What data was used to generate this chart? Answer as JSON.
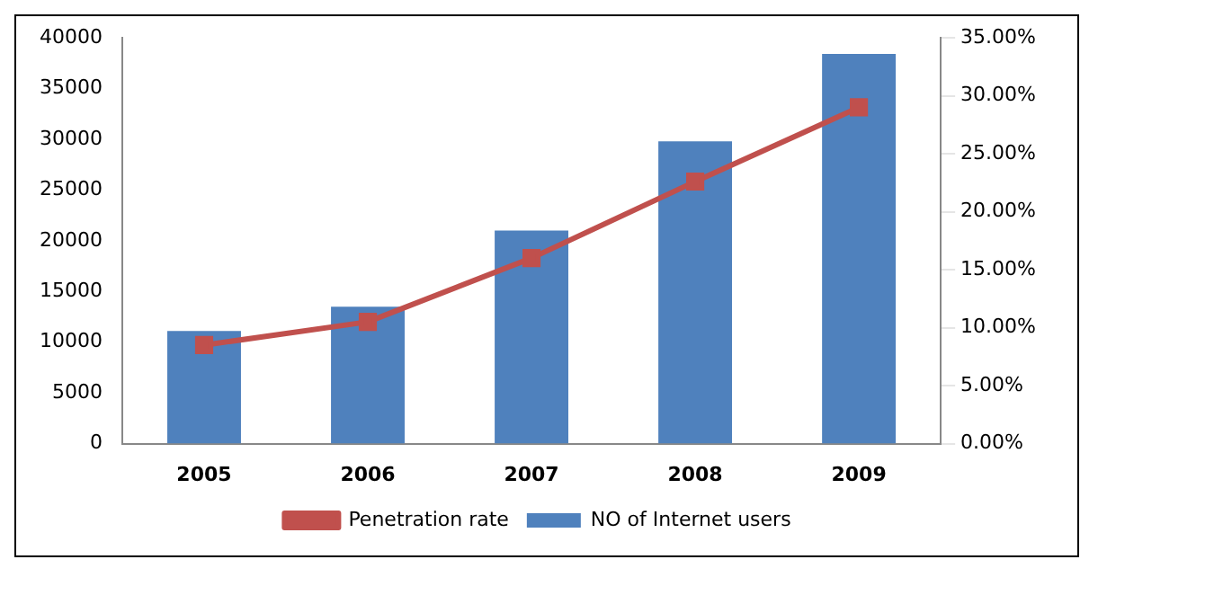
{
  "chart_data": {
    "type": "bar",
    "categories": [
      "2005",
      "2006",
      "2007",
      "2008",
      "2009"
    ],
    "series": [
      {
        "name": "NO of Internet users",
        "color": "#4f81bd",
        "values": [
          11100,
          13500,
          21000,
          29800,
          38400
        ]
      },
      {
        "name": "Penetration rate",
        "type": "line",
        "axis": "y2",
        "color": "#c0504d",
        "marker": "square",
        "values": [
          8.5,
          10.5,
          16,
          22.6,
          29
        ]
      }
    ],
    "ylim": [
      0,
      40000
    ],
    "yticks": [
      0,
      5000,
      10000,
      15000,
      20000,
      25000,
      30000,
      35000,
      40000
    ],
    "y2lim": [
      0,
      35
    ],
    "y2ticks": [
      {
        "value": 0,
        "label": "0.00%"
      },
      {
        "value": 5,
        "label": "5.00%"
      },
      {
        "value": 10,
        "label": "10.00%"
      },
      {
        "value": 15,
        "label": "15.00%"
      },
      {
        "value": 20,
        "label": "20.00%"
      },
      {
        "value": 25,
        "label": "25.00%"
      },
      {
        "value": 30,
        "label": "30.00%"
      },
      {
        "value": 35,
        "label": "35.00%"
      }
    ],
    "grid": false,
    "legend": "bottom"
  }
}
